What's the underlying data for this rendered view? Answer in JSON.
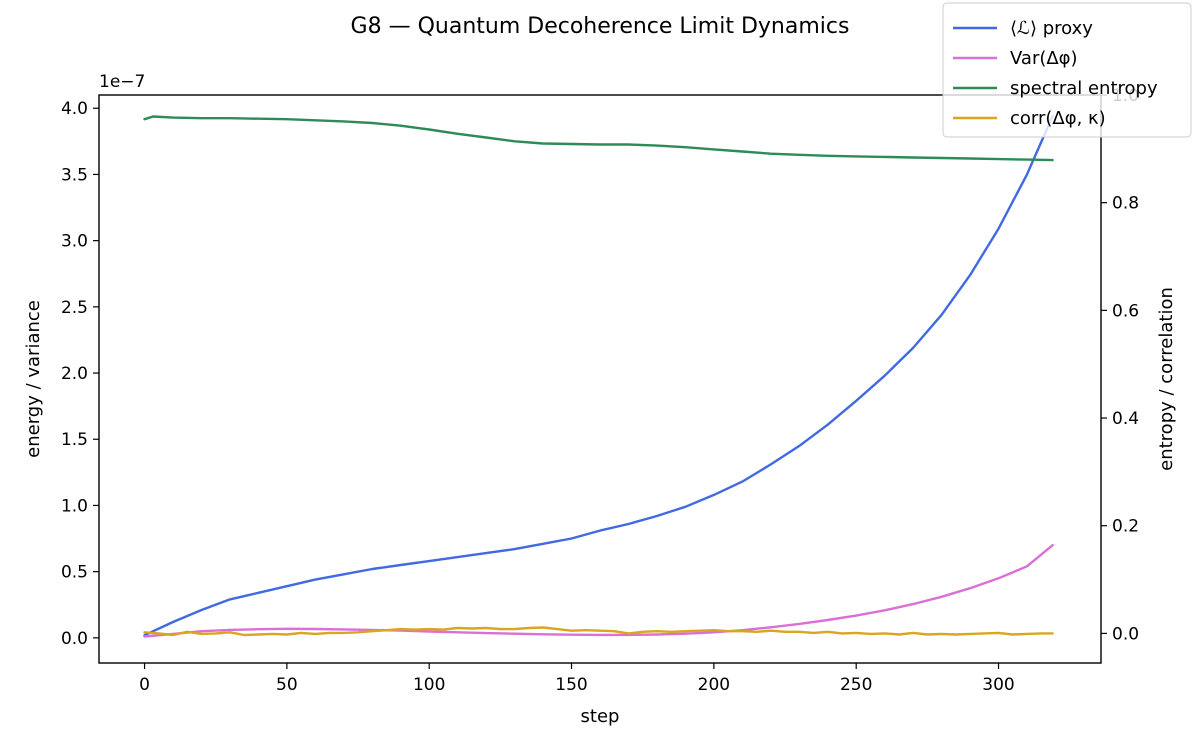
{
  "chart_data": {
    "type": "line",
    "title": "G8 — Quantum Decoherence Limit Dynamics",
    "xlabel": "step",
    "ylabel_left": "energy / variance",
    "ylabel_right": "entropy / correlation",
    "left_axis_offset_label": "1e−7",
    "xlim": [
      -16,
      336
    ],
    "ylim_left": [
      -0.19,
      4.1
    ],
    "ylim_right": [
      -0.055,
      1.0
    ],
    "x_ticks": [
      0,
      50,
      100,
      150,
      200,
      250,
      300
    ],
    "x_tick_labels": [
      "0",
      "50",
      "100",
      "150",
      "200",
      "250",
      "300"
    ],
    "y_left_ticks": [
      0.0,
      0.5,
      1.0,
      1.5,
      2.0,
      2.5,
      3.0,
      3.5,
      4.0
    ],
    "y_left_tick_labels": [
      "0.0",
      "0.5",
      "1.0",
      "1.5",
      "2.0",
      "2.5",
      "3.0",
      "3.5",
      "4.0"
    ],
    "y_right_ticks": [
      0.0,
      0.2,
      0.4,
      0.6,
      0.8,
      1.0
    ],
    "y_right_tick_labels": [
      "0.0",
      "0.2",
      "0.4",
      "0.6",
      "0.8",
      "1.0"
    ],
    "grid": false,
    "legend_position": "top-right",
    "series": [
      {
        "name": "⟨ℒ⟩ proxy",
        "axis": "left",
        "color": "#4169e1",
        "x": [
          0,
          10,
          20,
          30,
          40,
          50,
          60,
          70,
          80,
          90,
          100,
          110,
          120,
          130,
          140,
          150,
          160,
          170,
          180,
          190,
          200,
          210,
          220,
          230,
          240,
          250,
          260,
          270,
          280,
          290,
          300,
          310,
          319
        ],
        "values": [
          0.02,
          0.12,
          0.21,
          0.29,
          0.34,
          0.39,
          0.44,
          0.48,
          0.52,
          0.55,
          0.58,
          0.61,
          0.64,
          0.67,
          0.71,
          0.75,
          0.81,
          0.86,
          0.92,
          0.99,
          1.08,
          1.18,
          1.31,
          1.45,
          1.61,
          1.79,
          1.98,
          2.19,
          2.44,
          2.74,
          3.09,
          3.5,
          3.94
        ]
      },
      {
        "name": "Var(Δφ)",
        "axis": "left",
        "color": "#da70d6",
        "x": [
          0,
          10,
          20,
          30,
          40,
          50,
          60,
          70,
          80,
          90,
          100,
          110,
          120,
          130,
          140,
          150,
          160,
          170,
          180,
          190,
          200,
          210,
          220,
          230,
          240,
          250,
          260,
          270,
          280,
          290,
          300,
          310,
          319
        ],
        "values": [
          0.01,
          0.03,
          0.05,
          0.06,
          0.065,
          0.068,
          0.067,
          0.064,
          0.06,
          0.055,
          0.048,
          0.042,
          0.036,
          0.031,
          0.027,
          0.024,
          0.022,
          0.022,
          0.025,
          0.031,
          0.042,
          0.058,
          0.08,
          0.105,
          0.135,
          0.168,
          0.208,
          0.255,
          0.31,
          0.375,
          0.45,
          0.54,
          0.7
        ]
      },
      {
        "name": "spectral entropy",
        "axis": "right",
        "color": "#2e8b57",
        "x": [
          0,
          3,
          10,
          20,
          30,
          40,
          50,
          60,
          70,
          80,
          90,
          100,
          110,
          120,
          130,
          140,
          150,
          160,
          170,
          180,
          190,
          200,
          210,
          220,
          230,
          240,
          250,
          260,
          270,
          280,
          290,
          300,
          310,
          319
        ],
        "values": [
          0.955,
          0.96,
          0.958,
          0.957,
          0.957,
          0.956,
          0.955,
          0.953,
          0.951,
          0.948,
          0.943,
          0.936,
          0.928,
          0.921,
          0.914,
          0.91,
          0.909,
          0.908,
          0.908,
          0.906,
          0.903,
          0.899,
          0.895,
          0.891,
          0.889,
          0.887,
          0.886,
          0.885,
          0.884,
          0.883,
          0.882,
          0.881,
          0.88,
          0.879
        ]
      },
      {
        "name": "corr(Δφ, κ)",
        "axis": "right",
        "color": "#daa520",
        "x": [
          0,
          5,
          10,
          15,
          20,
          25,
          30,
          35,
          40,
          45,
          50,
          55,
          60,
          65,
          70,
          75,
          80,
          85,
          90,
          95,
          100,
          105,
          110,
          115,
          120,
          125,
          130,
          135,
          140,
          145,
          150,
          155,
          160,
          165,
          170,
          175,
          180,
          185,
          190,
          195,
          200,
          205,
          210,
          215,
          220,
          225,
          230,
          235,
          240,
          245,
          250,
          255,
          260,
          265,
          270,
          275,
          280,
          285,
          290,
          295,
          300,
          305,
          310,
          315,
          319
        ],
        "values": [
          0.002,
          0.0,
          -0.003,
          0.003,
          -0.001,
          0.0,
          0.002,
          -0.003,
          -0.002,
          -0.001,
          -0.002,
          0.001,
          -0.001,
          0.001,
          0.001,
          0.002,
          0.004,
          0.006,
          0.008,
          0.007,
          0.008,
          0.007,
          0.01,
          0.009,
          0.01,
          0.008,
          0.008,
          0.01,
          0.011,
          0.008,
          0.005,
          0.006,
          0.005,
          0.004,
          0.0,
          0.003,
          0.004,
          0.003,
          0.004,
          0.005,
          0.006,
          0.004,
          0.004,
          0.003,
          0.005,
          0.003,
          0.003,
          0.001,
          0.003,
          0.0,
          0.001,
          -0.001,
          0.0,
          -0.002,
          0.001,
          -0.002,
          -0.001,
          -0.002,
          -0.001,
          0.0,
          0.001,
          -0.002,
          -0.001,
          0.0,
          0.0
        ]
      }
    ]
  }
}
